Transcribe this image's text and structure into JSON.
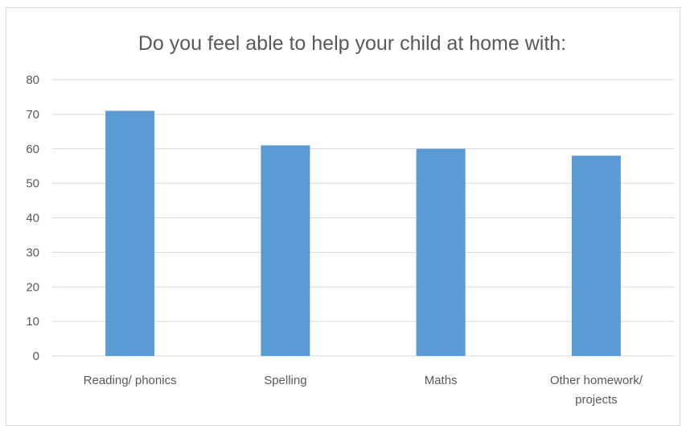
{
  "chart_data": {
    "type": "bar",
    "title": "Do you feel able to help your child at home with:",
    "xlabel": "",
    "ylabel": "",
    "categories": [
      "Reading/ phonics",
      "Spelling",
      "Maths",
      "Other homework/ projects"
    ],
    "category_lines": [
      [
        "Reading/ phonics"
      ],
      [
        "Spelling"
      ],
      [
        "Maths"
      ],
      [
        "Other homework/",
        "projects"
      ]
    ],
    "values": [
      71,
      61,
      60,
      58
    ],
    "ylim": [
      0,
      80
    ],
    "yticks": [
      "0",
      "10",
      "20",
      "30",
      "40",
      "50",
      "60",
      "70",
      "80"
    ],
    "grid": true,
    "legend": "none"
  },
  "colors": {
    "bar": "#5b9bd5",
    "grid": "#d9d9d9",
    "text": "#595959"
  }
}
